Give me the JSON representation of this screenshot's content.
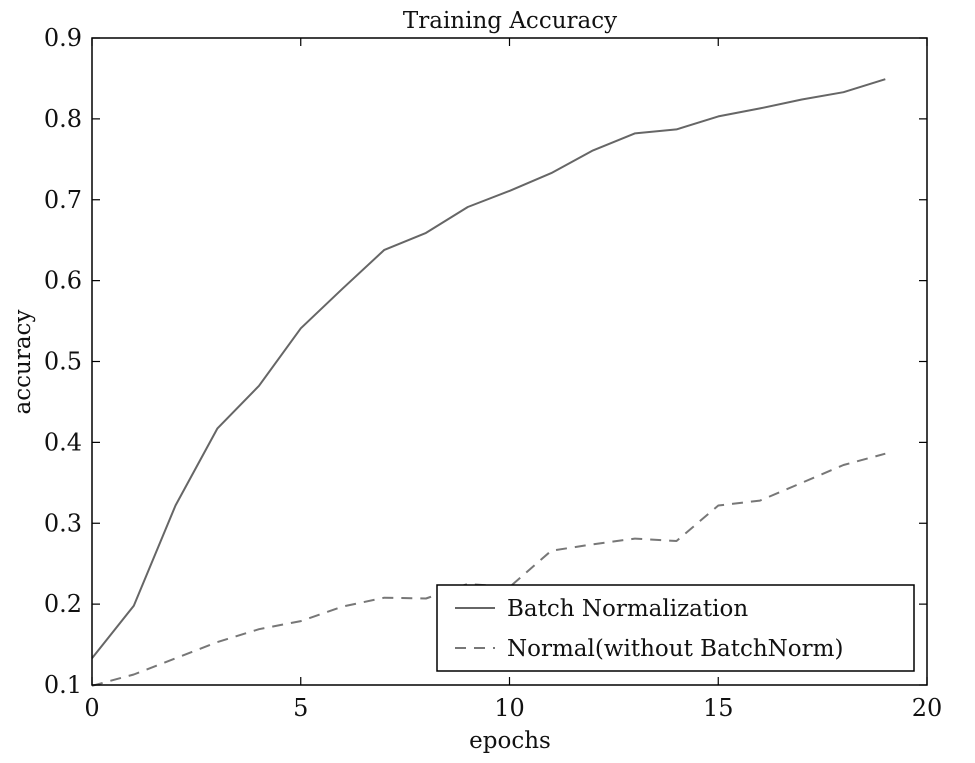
{
  "chart_data": {
    "type": "line",
    "title": "Training Accuracy",
    "xlabel": "epochs",
    "ylabel": "accuracy",
    "xlim": [
      0,
      20
    ],
    "ylim": [
      0.1,
      0.9
    ],
    "xticks": [
      0,
      5,
      10,
      15,
      20
    ],
    "xtick_labels": [
      "0",
      "5",
      "10",
      "15",
      "20"
    ],
    "yticks": [
      0.1,
      0.2,
      0.3,
      0.4,
      0.5,
      0.6,
      0.7,
      0.8,
      0.9
    ],
    "ytick_labels": [
      "0.1",
      "0.2",
      "0.3",
      "0.4",
      "0.5",
      "0.6",
      "0.7",
      "0.8",
      "0.9"
    ],
    "grid": false,
    "legend_position": "lower-right",
    "x": [
      0,
      1,
      2,
      3,
      4,
      5,
      6,
      7,
      8,
      9,
      10,
      11,
      12,
      13,
      14,
      15,
      16,
      17,
      18,
      19
    ],
    "series": [
      {
        "name": "Batch Normalization",
        "style": "solid",
        "color": "#666666",
        "values": [
          0.133,
          0.198,
          0.322,
          0.417,
          0.47,
          0.541,
          0.59,
          0.638,
          0.659,
          0.691,
          0.711,
          0.733,
          0.761,
          0.782,
          0.787,
          0.803,
          0.813,
          0.824,
          0.833,
          0.849
        ]
      },
      {
        "name": "Normal(without BatchNorm)",
        "style": "dashed",
        "color": "#777777",
        "values": [
          0.099,
          0.113,
          0.133,
          0.153,
          0.169,
          0.179,
          0.197,
          0.208,
          0.207,
          0.225,
          0.221,
          0.266,
          0.274,
          0.281,
          0.278,
          0.322,
          0.328,
          0.35,
          0.372,
          0.386
        ]
      }
    ]
  }
}
